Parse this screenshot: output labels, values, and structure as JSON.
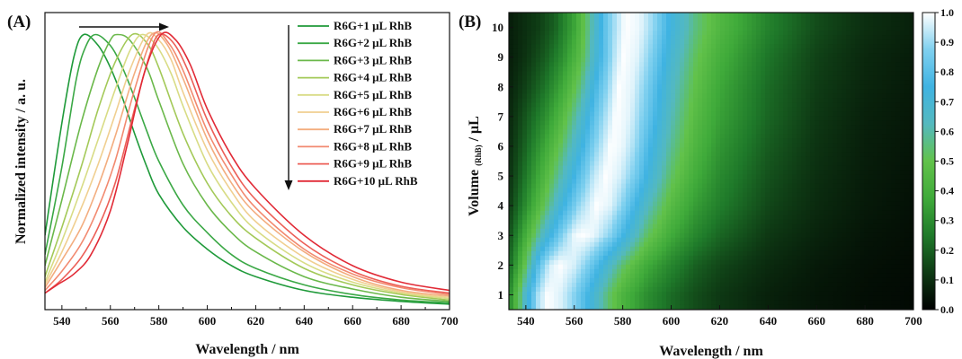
{
  "chart_data": [
    {
      "panel": "(A)",
      "type": "line",
      "xlabel": "Wavelength / nm",
      "ylabel": "Normalized intensity / a. u.",
      "xlim": [
        533,
        700
      ],
      "ylim": [
        0,
        1.08
      ],
      "x_ticks": [
        "540",
        "560",
        "580",
        "600",
        "620",
        "640",
        "660",
        "680",
        "700"
      ],
      "y_ticks_shown": false,
      "legend_position": "top-right",
      "grid": false,
      "annotations": [
        "arrow right: peak red-shift",
        "arrow down: increasing RhB volume"
      ],
      "series": [
        {
          "name": "R6G+1 μL RhB",
          "peak": 549,
          "color": "#1f9a3a",
          "values": [
            [
              533,
              0.27
            ],
            [
              540,
              0.68
            ],
            [
              545,
              0.92
            ],
            [
              549,
              1.0
            ],
            [
              555,
              0.96
            ],
            [
              560,
              0.88
            ],
            [
              565,
              0.77
            ],
            [
              570,
              0.64
            ],
            [
              575,
              0.52
            ],
            [
              580,
              0.42
            ],
            [
              590,
              0.3
            ],
            [
              600,
              0.22
            ],
            [
              610,
              0.16
            ],
            [
              620,
              0.12
            ],
            [
              640,
              0.07
            ],
            [
              660,
              0.045
            ],
            [
              680,
              0.03
            ],
            [
              700,
              0.02
            ]
          ]
        },
        {
          "name": "R6G+2 μL RhB",
          "peak": 554,
          "color": "#3aa845",
          "values": [
            [
              533,
              0.2
            ],
            [
              540,
              0.52
            ],
            [
              546,
              0.84
            ],
            [
              550,
              0.96
            ],
            [
              554,
              1.0
            ],
            [
              560,
              0.96
            ],
            [
              565,
              0.88
            ],
            [
              570,
              0.77
            ],
            [
              575,
              0.65
            ],
            [
              580,
              0.54
            ],
            [
              590,
              0.38
            ],
            [
              600,
              0.28
            ],
            [
              610,
              0.2
            ],
            [
              620,
              0.15
            ],
            [
              640,
              0.09
            ],
            [
              660,
              0.055
            ],
            [
              680,
              0.035
            ],
            [
              700,
              0.025
            ]
          ]
        },
        {
          "name": "R6G+3 μL RhB",
          "peak": 563,
          "color": "#6ab84a",
          "values": [
            [
              533,
              0.16
            ],
            [
              540,
              0.4
            ],
            [
              548,
              0.68
            ],
            [
              555,
              0.88
            ],
            [
              560,
              0.98
            ],
            [
              563,
              1.0
            ],
            [
              568,
              0.98
            ],
            [
              575,
              0.88
            ],
            [
              580,
              0.76
            ],
            [
              590,
              0.53
            ],
            [
              600,
              0.38
            ],
            [
              610,
              0.28
            ],
            [
              620,
              0.21
            ],
            [
              640,
              0.12
            ],
            [
              660,
              0.075
            ],
            [
              680,
              0.045
            ],
            [
              700,
              0.03
            ]
          ]
        },
        {
          "name": "R6G+4 μL RhB",
          "peak": 569,
          "color": "#a3c958",
          "values": [
            [
              533,
              0.12
            ],
            [
              540,
              0.3
            ],
            [
              548,
              0.52
            ],
            [
              555,
              0.73
            ],
            [
              562,
              0.9
            ],
            [
              569,
              1.0
            ],
            [
              575,
              0.97
            ],
            [
              580,
              0.88
            ],
            [
              590,
              0.64
            ],
            [
              600,
              0.46
            ],
            [
              610,
              0.34
            ],
            [
              620,
              0.26
            ],
            [
              640,
              0.15
            ],
            [
              660,
              0.09
            ],
            [
              680,
              0.055
            ],
            [
              700,
              0.035
            ]
          ]
        },
        {
          "name": "R6G+5 μL RhB",
          "peak": 573,
          "color": "#d8dc85",
          "values": [
            [
              533,
              0.1
            ],
            [
              540,
              0.25
            ],
            [
              548,
              0.44
            ],
            [
              555,
              0.62
            ],
            [
              562,
              0.8
            ],
            [
              568,
              0.94
            ],
            [
              573,
              1.0
            ],
            [
              579,
              0.96
            ],
            [
              585,
              0.86
            ],
            [
              590,
              0.74
            ],
            [
              600,
              0.53
            ],
            [
              610,
              0.39
            ],
            [
              620,
              0.29
            ],
            [
              640,
              0.17
            ],
            [
              660,
              0.1
            ],
            [
              680,
              0.06
            ],
            [
              700,
              0.04
            ]
          ]
        },
        {
          "name": "R6G+6 μL RhB",
          "peak": 575,
          "color": "#f0cf90",
          "values": [
            [
              533,
              0.09
            ],
            [
              540,
              0.21
            ],
            [
              548,
              0.37
            ],
            [
              555,
              0.53
            ],
            [
              562,
              0.71
            ],
            [
              568,
              0.87
            ],
            [
              575,
              1.0
            ],
            [
              580,
              0.98
            ],
            [
              585,
              0.91
            ],
            [
              590,
              0.79
            ],
            [
              600,
              0.58
            ],
            [
              610,
              0.43
            ],
            [
              620,
              0.32
            ],
            [
              640,
              0.19
            ],
            [
              660,
              0.11
            ],
            [
              680,
              0.065
            ],
            [
              700,
              0.045
            ]
          ]
        },
        {
          "name": "R6G+7 μL RhB",
          "peak": 577,
          "color": "#f3ad7f",
          "values": [
            [
              533,
              0.08
            ],
            [
              540,
              0.18
            ],
            [
              548,
              0.3
            ],
            [
              555,
              0.45
            ],
            [
              562,
              0.63
            ],
            [
              570,
              0.86
            ],
            [
              577,
              1.0
            ],
            [
              583,
              0.97
            ],
            [
              590,
              0.84
            ],
            [
              600,
              0.62
            ],
            [
              610,
              0.46
            ],
            [
              620,
              0.35
            ],
            [
              640,
              0.21
            ],
            [
              660,
              0.12
            ],
            [
              680,
              0.07
            ],
            [
              700,
              0.05
            ]
          ]
        },
        {
          "name": "R6G+8 μL RhB",
          "peak": 578,
          "color": "#f28a70",
          "values": [
            [
              533,
              0.07
            ],
            [
              540,
              0.14
            ],
            [
              548,
              0.24
            ],
            [
              555,
              0.37
            ],
            [
              562,
              0.54
            ],
            [
              570,
              0.8
            ],
            [
              578,
              1.0
            ],
            [
              584,
              0.97
            ],
            [
              590,
              0.87
            ],
            [
              600,
              0.65
            ],
            [
              610,
              0.49
            ],
            [
              620,
              0.37
            ],
            [
              640,
              0.22
            ],
            [
              660,
              0.13
            ],
            [
              680,
              0.08
            ],
            [
              700,
              0.055
            ]
          ]
        },
        {
          "name": "R6G+9 μL RhB",
          "peak": 580,
          "color": "#ec5f57",
          "values": [
            [
              533,
              0.06
            ],
            [
              540,
              0.11
            ],
            [
              548,
              0.19
            ],
            [
              555,
              0.3
            ],
            [
              562,
              0.46
            ],
            [
              570,
              0.73
            ],
            [
              576,
              0.92
            ],
            [
              580,
              1.0
            ],
            [
              586,
              0.97
            ],
            [
              592,
              0.87
            ],
            [
              600,
              0.69
            ],
            [
              610,
              0.52
            ],
            [
              620,
              0.4
            ],
            [
              640,
              0.24
            ],
            [
              660,
              0.14
            ],
            [
              680,
              0.085
            ],
            [
              700,
              0.06
            ]
          ]
        },
        {
          "name": "R6G+10 μL RhB",
          "peak": 581,
          "color": "#e12a36",
          "values": [
            [
              533,
              0.06
            ],
            [
              538,
              0.09
            ],
            [
              545,
              0.13
            ],
            [
              552,
              0.2
            ],
            [
              560,
              0.36
            ],
            [
              567,
              0.6
            ],
            [
              574,
              0.86
            ],
            [
              581,
              1.0
            ],
            [
              587,
              0.98
            ],
            [
              593,
              0.89
            ],
            [
              600,
              0.73
            ],
            [
              610,
              0.56
            ],
            [
              620,
              0.44
            ],
            [
              640,
              0.27
            ],
            [
              660,
              0.16
            ],
            [
              680,
              0.1
            ],
            [
              700,
              0.07
            ]
          ]
        }
      ]
    },
    {
      "panel": "(B)",
      "type": "heatmap",
      "xlabel": "Wavelength / nm",
      "ylabel": "Volume",
      "ylabel_subscript": "(RhB)",
      "ylabel_unit": "/ μL",
      "xlim": [
        533,
        700
      ],
      "ylim": [
        0.5,
        10.5
      ],
      "x_ticks": [
        "540",
        "560",
        "580",
        "600",
        "620",
        "640",
        "660",
        "680",
        "700"
      ],
      "y_ticks": [
        "1",
        "2",
        "3",
        "4",
        "5",
        "6",
        "7",
        "8",
        "9",
        "10"
      ],
      "rows_volume": [
        1,
        2,
        3,
        4,
        5,
        6,
        7,
        8,
        9,
        10
      ],
      "peak_wavelength_by_volume": [
        549,
        554,
        563,
        569,
        573,
        575,
        577,
        578,
        580,
        581
      ],
      "colorbar": {
        "range": [
          0.0,
          1.0
        ],
        "ticks": [
          "0.0",
          "0.1",
          "0.2",
          "0.3",
          "0.4",
          "0.5",
          "0.6",
          "0.7",
          "0.8",
          "0.9",
          "1.0"
        ],
        "colors": [
          "#000000",
          "#0e3a14",
          "#1f7a2a",
          "#3faa3a",
          "#62c24a",
          "#54b9bf",
          "#3fb3e2",
          "#7fd0ef",
          "#ffffff"
        ]
      },
      "grid": false
    }
  ]
}
